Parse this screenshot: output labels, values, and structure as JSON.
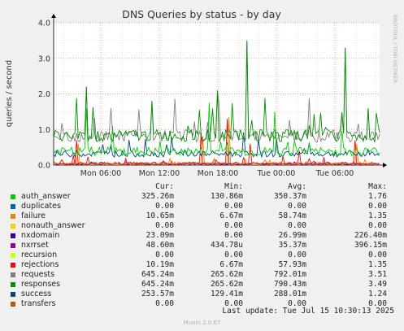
{
  "chart_data": {
    "type": "line",
    "title": "DNS Queries by status - by day",
    "ylabel": "queries / second",
    "side_label": "RRDTOOL / TOBI OETIKER",
    "ylim": [
      0,
      4
    ],
    "y_ticks": [
      "0.0",
      "1.0",
      "2.0",
      "3.0",
      "4.0"
    ],
    "x_ticks": [
      "Mon 06:00",
      "Mon 12:00",
      "Mon 18:00",
      "Tue 00:00",
      "Tue 06:00"
    ],
    "columns": [
      "Cur:",
      "Min:",
      "Avg:",
      "Max:"
    ],
    "series": [
      {
        "name": "auth_answer",
        "color": "#00cc00",
        "cur": "325.26m",
        "min": "130.86m",
        "avg": "350.37m",
        "max": "1.76"
      },
      {
        "name": "duplicates",
        "color": "#0066b3",
        "cur": "0.00",
        "min": "0.00",
        "avg": "0.00",
        "max": "0.00"
      },
      {
        "name": "failure",
        "color": "#ff8000",
        "cur": "10.65m",
        "min": "6.67m",
        "avg": "58.74m",
        "max": "1.35"
      },
      {
        "name": "nonauth_answer",
        "color": "#ffcc00",
        "cur": "0.00",
        "min": "0.00",
        "avg": "0.00",
        "max": "0.00"
      },
      {
        "name": "nxdomain",
        "color": "#330099",
        "cur": "23.09m",
        "min": "0.00",
        "avg": "26.99m",
        "max": "226.40m"
      },
      {
        "name": "nxrrset",
        "color": "#990099",
        "cur": "48.60m",
        "min": "434.78u",
        "avg": "35.37m",
        "max": "396.15m"
      },
      {
        "name": "recursion",
        "color": "#ccff00",
        "cur": "0.00",
        "min": "0.00",
        "avg": "0.00",
        "max": "0.00"
      },
      {
        "name": "rejections",
        "color": "#ff0000",
        "cur": "10.19m",
        "min": "6.67m",
        "avg": "57.93m",
        "max": "1.35"
      },
      {
        "name": "requests",
        "color": "#808080",
        "cur": "645.24m",
        "min": "265.62m",
        "avg": "792.01m",
        "max": "3.51"
      },
      {
        "name": "responses",
        "color": "#008f00",
        "cur": "645.24m",
        "min": "265.62m",
        "avg": "790.43m",
        "max": "3.49"
      },
      {
        "name": "success",
        "color": "#00487d",
        "cur": "253.57m",
        "min": "129.41m",
        "avg": "288.01m",
        "max": "1.24"
      },
      {
        "name": "transfers",
        "color": "#b35a00",
        "cur": "0.00",
        "min": "0.00",
        "avg": "0.00",
        "max": "0.00"
      }
    ],
    "last_update": "Last update: Tue Jul 15 10:30:13 2025",
    "version": "Munin 2.0.67"
  }
}
